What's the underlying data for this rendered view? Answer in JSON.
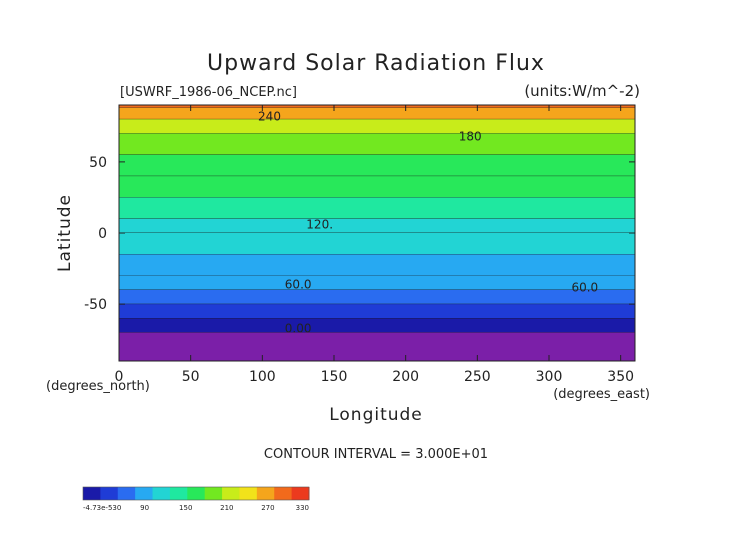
{
  "chart_data": {
    "type": "heatmap",
    "title": "Upward Solar Radiation Flux",
    "file_label": "[USWRF_1986-06_NCEP.nc]",
    "units_label": "(units:W/m^-2)",
    "xlabel": "Longitude",
    "ylabel": "Latitude",
    "x_unit_label": "(degrees_east)",
    "y_unit_label": "(degrees_north)",
    "xlim": [
      0,
      360
    ],
    "ylim": [
      -90,
      90
    ],
    "x_ticks": [
      0,
      50,
      100,
      150,
      200,
      250,
      300,
      350
    ],
    "y_ticks": [
      -50,
      0,
      50
    ],
    "contour_interval_text": "CONTOUR INTERVAL = 3.000E+01",
    "contour_labels": [
      "240",
      "180",
      "120.",
      "60.0",
      "60.0",
      "0.00"
    ],
    "colorbar_tick_labels": [
      "-4.73e-530",
      "90",
      "150",
      "210",
      "270",
      "330"
    ],
    "colorbar_range": [
      0,
      330
    ],
    "colorbar_colors": [
      "#1a1aa8",
      "#1f3cd6",
      "#2a6cf0",
      "#27a9f2",
      "#22d4d4",
      "#1fe8a0",
      "#28e85a",
      "#72e820",
      "#c8ec1a",
      "#f2e21a",
      "#f5a51c",
      "#f26a1c",
      "#ec3a1e"
    ],
    "lat_bands": [
      {
        "lat_top": 90,
        "lat_bottom": 88,
        "value": 300
      },
      {
        "lat_top": 88,
        "lat_bottom": 80,
        "value": 255
      },
      {
        "lat_top": 80,
        "lat_bottom": 70,
        "value": 225
      },
      {
        "lat_top": 70,
        "lat_bottom": 55,
        "value": 200
      },
      {
        "lat_top": 55,
        "lat_bottom": 40,
        "value": 175
      },
      {
        "lat_top": 40,
        "lat_bottom": 25,
        "value": 165
      },
      {
        "lat_top": 25,
        "lat_bottom": 10,
        "value": 145
      },
      {
        "lat_top": 10,
        "lat_bottom": 0,
        "value": 125
      },
      {
        "lat_top": 0,
        "lat_bottom": -15,
        "value": 110
      },
      {
        "lat_top": -15,
        "lat_bottom": -30,
        "value": 95
      },
      {
        "lat_top": -30,
        "lat_bottom": -40,
        "value": 80
      },
      {
        "lat_top": -40,
        "lat_bottom": -50,
        "value": 55
      },
      {
        "lat_top": -50,
        "lat_bottom": -60,
        "value": 40
      },
      {
        "lat_top": -60,
        "lat_bottom": -70,
        "value": 25
      },
      {
        "lat_top": -70,
        "lat_bottom": -90,
        "value": 0
      }
    ]
  }
}
